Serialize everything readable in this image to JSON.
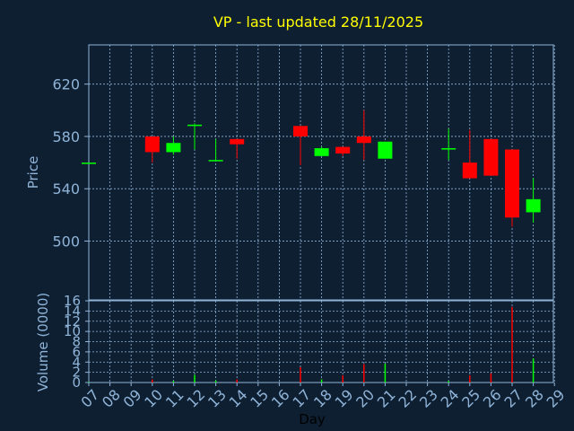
{
  "chart_data": [
    {
      "type": "candlestick",
      "title": "VP - last updated 28/11/2025",
      "ylabel": "Price",
      "ylim": [
        455,
        650
      ],
      "yticks": [
        500,
        540,
        580,
        620
      ],
      "x_ticks": [
        "07",
        "08",
        "09",
        "10",
        "11",
        "12",
        "13",
        "14",
        "15",
        "16",
        "17",
        "18",
        "19",
        "20",
        "21",
        "22",
        "23",
        "24",
        "25",
        "26",
        "27",
        "28",
        "29"
      ],
      "grid": true,
      "up_color": "#00ff00",
      "down_color": "#ff0000",
      "candles": [
        {
          "day": "07",
          "open": 560,
          "high": 560,
          "low": 560,
          "close": 560
        },
        {
          "day": "10",
          "open": 580,
          "high": 580,
          "low": 560,
          "close": 568
        },
        {
          "day": "11",
          "open": 568,
          "high": 580,
          "low": 566,
          "close": 575
        },
        {
          "day": "12",
          "open": 589,
          "high": 590,
          "low": 570,
          "close": 589
        },
        {
          "day": "13",
          "open": 561,
          "high": 578,
          "low": 561,
          "close": 562
        },
        {
          "day": "14",
          "open": 578,
          "high": 578,
          "low": 563,
          "close": 574
        },
        {
          "day": "17",
          "open": 588,
          "high": 588,
          "low": 558,
          "close": 580
        },
        {
          "day": "18",
          "open": 565,
          "high": 572,
          "low": 565,
          "close": 571
        },
        {
          "day": "19",
          "open": 572,
          "high": 572,
          "low": 565,
          "close": 567
        },
        {
          "day": "20",
          "open": 580,
          "high": 600,
          "low": 562,
          "close": 575
        },
        {
          "day": "21",
          "open": 563,
          "high": 576,
          "low": 563,
          "close": 576
        },
        {
          "day": "24",
          "open": 570,
          "high": 586,
          "low": 562,
          "close": 571
        },
        {
          "day": "25",
          "open": 560,
          "high": 585,
          "low": 548,
          "close": 548
        },
        {
          "day": "26",
          "open": 578,
          "high": 578,
          "low": 550,
          "close": 550
        },
        {
          "day": "27",
          "open": 570,
          "high": 570,
          "low": 511,
          "close": 518
        },
        {
          "day": "28",
          "open": 522,
          "high": 548,
          "low": 514,
          "close": 532
        }
      ]
    },
    {
      "type": "bar",
      "ylabel": "Volume (0000)",
      "xlabel": "Day",
      "ylim": [
        0,
        16
      ],
      "yticks": [
        0,
        2,
        4,
        6,
        8,
        10,
        12,
        14,
        16
      ],
      "categories": [
        "07",
        "10",
        "11",
        "12",
        "13",
        "14",
        "17",
        "18",
        "19",
        "20",
        "21",
        "24",
        "25",
        "26",
        "27",
        "28"
      ],
      "values": [
        0.1,
        0.6,
        0.3,
        1.5,
        0.4,
        0.6,
        3.0,
        0.6,
        1.4,
        3.6,
        3.7,
        0.3,
        1.4,
        1.8,
        14.8,
        4.7
      ],
      "bar_colors": [
        "#00ff00",
        "#ff0000",
        "#00ff00",
        "#00ff00",
        "#00ff00",
        "#ff0000",
        "#ff0000",
        "#00ff00",
        "#ff0000",
        "#ff0000",
        "#00ff00",
        "#00ff00",
        "#ff0000",
        "#ff0000",
        "#ff0000",
        "#00ff00"
      ]
    }
  ]
}
